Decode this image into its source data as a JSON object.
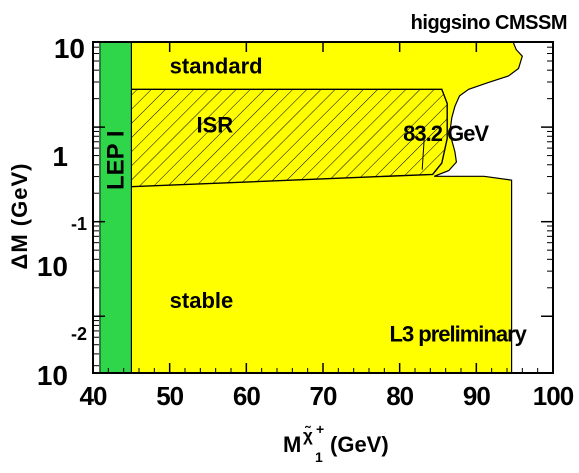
{
  "chart_data": {
    "type": "area",
    "title": "higgsino CMSSM",
    "xlabel": {
      "main": "M",
      "sub": "1",
      "sup": "+",
      "symbol": "χ̃",
      "unit": "(GeV)"
    },
    "ylabel": "ΔM (GeV)",
    "xlim": [
      40,
      100
    ],
    "ylim_log10": [
      -2.6,
      0.9
    ],
    "yscale": "log",
    "x_ticks": [
      "40",
      "50",
      "60",
      "70",
      "80",
      "90",
      "100"
    ],
    "y_ticks": [
      {
        "base": "10",
        "exp": ""
      },
      {
        "base": "1",
        "exp": ""
      },
      {
        "base": "10",
        "exp": "-1"
      },
      {
        "base": "10",
        "exp": "-2"
      }
    ],
    "regions": [
      {
        "name": "LEP I",
        "label": "LEP I",
        "color": "#2fd64a",
        "x_range": [
          40.9,
          45.0
        ],
        "ylim_log10": [
          -2.6,
          0.9
        ]
      },
      {
        "name": "excluded",
        "color": "#ffff00",
        "boundary": [
          [
            45.0,
            0.9
          ],
          [
            94.8,
            0.9
          ],
          [
            95.2,
            0.82
          ],
          [
            96.0,
            0.75
          ],
          [
            95.5,
            0.62
          ],
          [
            94.2,
            0.54
          ],
          [
            91.5,
            0.47
          ],
          [
            89.0,
            0.4
          ],
          [
            87.8,
            0.33
          ],
          [
            87.2,
            0.22
          ],
          [
            86.8,
            0.1
          ],
          [
            86.6,
            -0.02
          ],
          [
            86.8,
            -0.14
          ],
          [
            87.2,
            -0.26
          ],
          [
            87.4,
            -0.37
          ],
          [
            86.4,
            -0.46
          ],
          [
            84.5,
            -0.52
          ],
          [
            87.0,
            -0.52
          ],
          [
            91.0,
            -0.52
          ],
          [
            94.6,
            -0.56
          ],
          [
            94.6,
            -2.6
          ],
          [
            45.0,
            -2.6
          ]
        ],
        "labels": [
          {
            "text": "standard",
            "x": 50.0,
            "y_log10": 0.65
          },
          {
            "text": "stable",
            "x": 50.0,
            "y_log10": -1.83
          }
        ]
      },
      {
        "name": "ISR",
        "label": "ISR",
        "hatched": true,
        "boundary": [
          [
            45.0,
            0.4
          ],
          [
            85.5,
            0.4
          ],
          [
            86.2,
            0.25
          ],
          [
            86.2,
            -0.12
          ],
          [
            85.5,
            -0.38
          ],
          [
            84.3,
            -0.5
          ],
          [
            45.0,
            -0.63
          ]
        ],
        "labels": [
          {
            "text": "ISR",
            "x": 53.5,
            "y_log10": 0.03
          }
        ]
      }
    ],
    "annotations": [
      {
        "text": "83.2 GeV",
        "x": 81.5,
        "y_log10": -0.06,
        "marker_x": 83.2,
        "marker_log10_range": [
          -0.12,
          -0.45
        ]
      },
      {
        "text": "L3 preliminary",
        "x": 80.5,
        "y_log10": -2.18
      }
    ]
  }
}
